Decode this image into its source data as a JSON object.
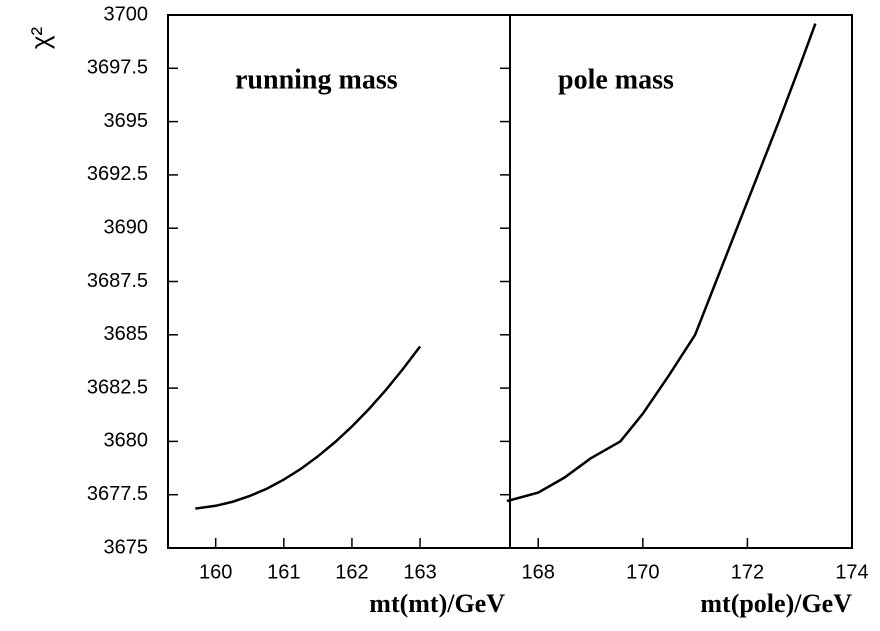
{
  "chart_data": [
    {
      "type": "line",
      "ylabel": "χ²",
      "xlabel": "mt(mt)/GeV",
      "annotation": "running mass",
      "x": [
        159.7,
        160.0,
        160.25,
        160.5,
        160.75,
        161.0,
        161.25,
        161.5,
        161.75,
        162.0,
        162.25,
        162.5,
        162.75,
        163.0
      ],
      "series": [
        {
          "color": "#000000",
          "values": [
            3676.85,
            3676.98,
            3677.17,
            3677.44,
            3677.78,
            3678.21,
            3678.71,
            3679.3,
            3679.96,
            3680.7,
            3681.52,
            3682.42,
            3683.4,
            3684.45
          ]
        }
      ],
      "xlim": [
        159.3,
        164.32
      ],
      "xticks": [
        160,
        161,
        162,
        163
      ],
      "ylim": [
        3675,
        3700
      ],
      "yticks": [
        3675,
        3677.5,
        3680,
        3682.5,
        3685,
        3687.5,
        3690,
        3692.5,
        3695,
        3697.5,
        3700
      ]
    },
    {
      "type": "line",
      "xlabel": "mt(pole)/GeV",
      "annotation": "pole mass",
      "x": [
        167.4,
        168.0,
        168.5,
        169.0,
        169.57,
        170.0,
        170.5,
        171.0,
        171.4,
        171.8,
        172.2,
        172.6,
        173.0,
        173.3
      ],
      "series": [
        {
          "color": "#000000",
          "values": [
            3677.2,
            3677.6,
            3678.3,
            3679.2,
            3680.0,
            3681.3,
            3683.1,
            3685.0,
            3687.5,
            3690.0,
            3692.5,
            3695.0,
            3697.6,
            3699.6
          ]
        }
      ],
      "xlim": [
        167.46,
        174.0
      ],
      "xticks": [
        168,
        170,
        172,
        174
      ],
      "ylim": [
        3675,
        3700
      ]
    }
  ]
}
